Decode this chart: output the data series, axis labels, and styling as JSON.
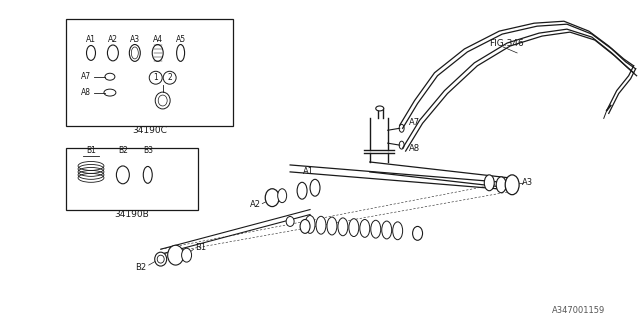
{
  "bg_color": "#ffffff",
  "line_color": "#1a1a1a",
  "fig_size": [
    6.4,
    3.2
  ],
  "dpi": 100,
  "box_c_label": "34190C",
  "box_b_label": "34190B",
  "fig_ref": "FIG.346",
  "diagram_ref": "A347001159"
}
